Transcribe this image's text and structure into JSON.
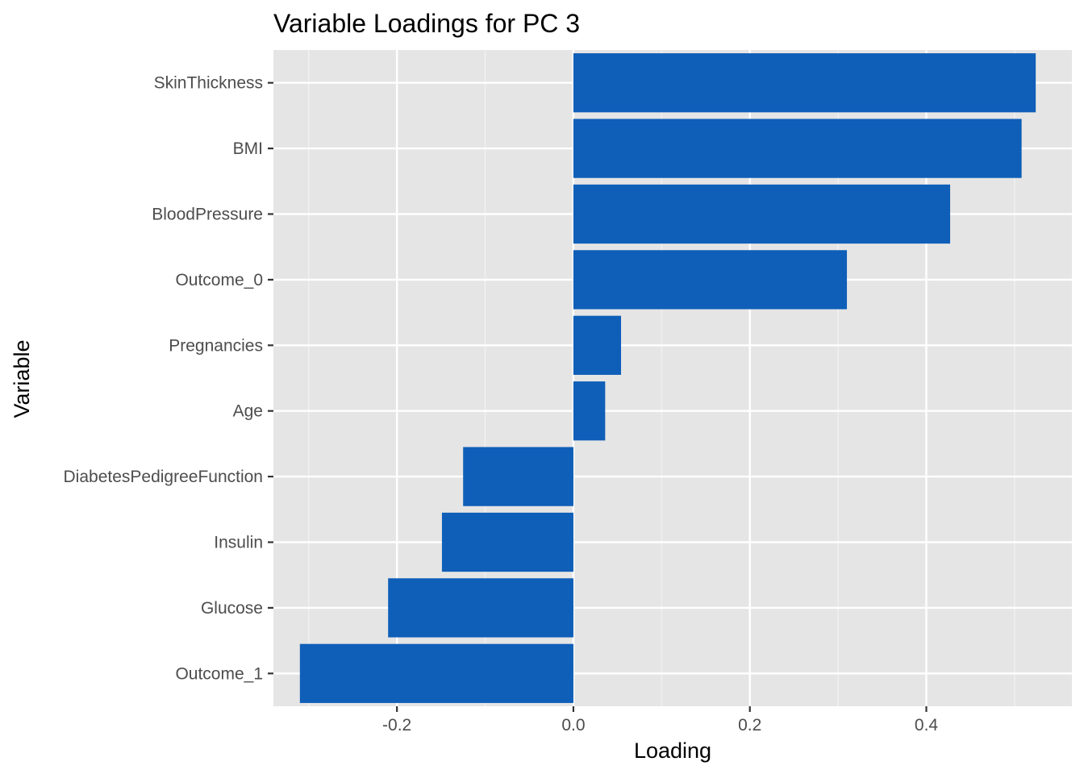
{
  "chart_data": {
    "type": "bar",
    "orientation": "horizontal",
    "title": "Variable Loadings for PC 3",
    "xlabel": "Loading",
    "ylabel": "Variable",
    "xlim": [
      -0.34,
      0.565
    ],
    "xticks": [
      -0.2,
      0.0,
      0.2,
      0.4
    ],
    "xtick_labels": [
      "-0.2",
      "0.0",
      "0.2",
      "0.4"
    ],
    "grid": true,
    "legend": "none",
    "categories": [
      "SkinThickness",
      "BMI",
      "BloodPressure",
      "Outcome_0",
      "Pregnancies",
      "Age",
      "DiabetesPedigreeFunction",
      "Insulin",
      "Glucose",
      "Outcome_1"
    ],
    "values": [
      0.524,
      0.508,
      0.427,
      0.31,
      0.054,
      0.036,
      -0.125,
      -0.149,
      -0.21,
      -0.31
    ],
    "colors": {
      "bar": "#0f5fb8",
      "panel": "#e5e5e5",
      "grid_major": "#ffffff",
      "grid_minor": "#f2f2f2"
    }
  }
}
